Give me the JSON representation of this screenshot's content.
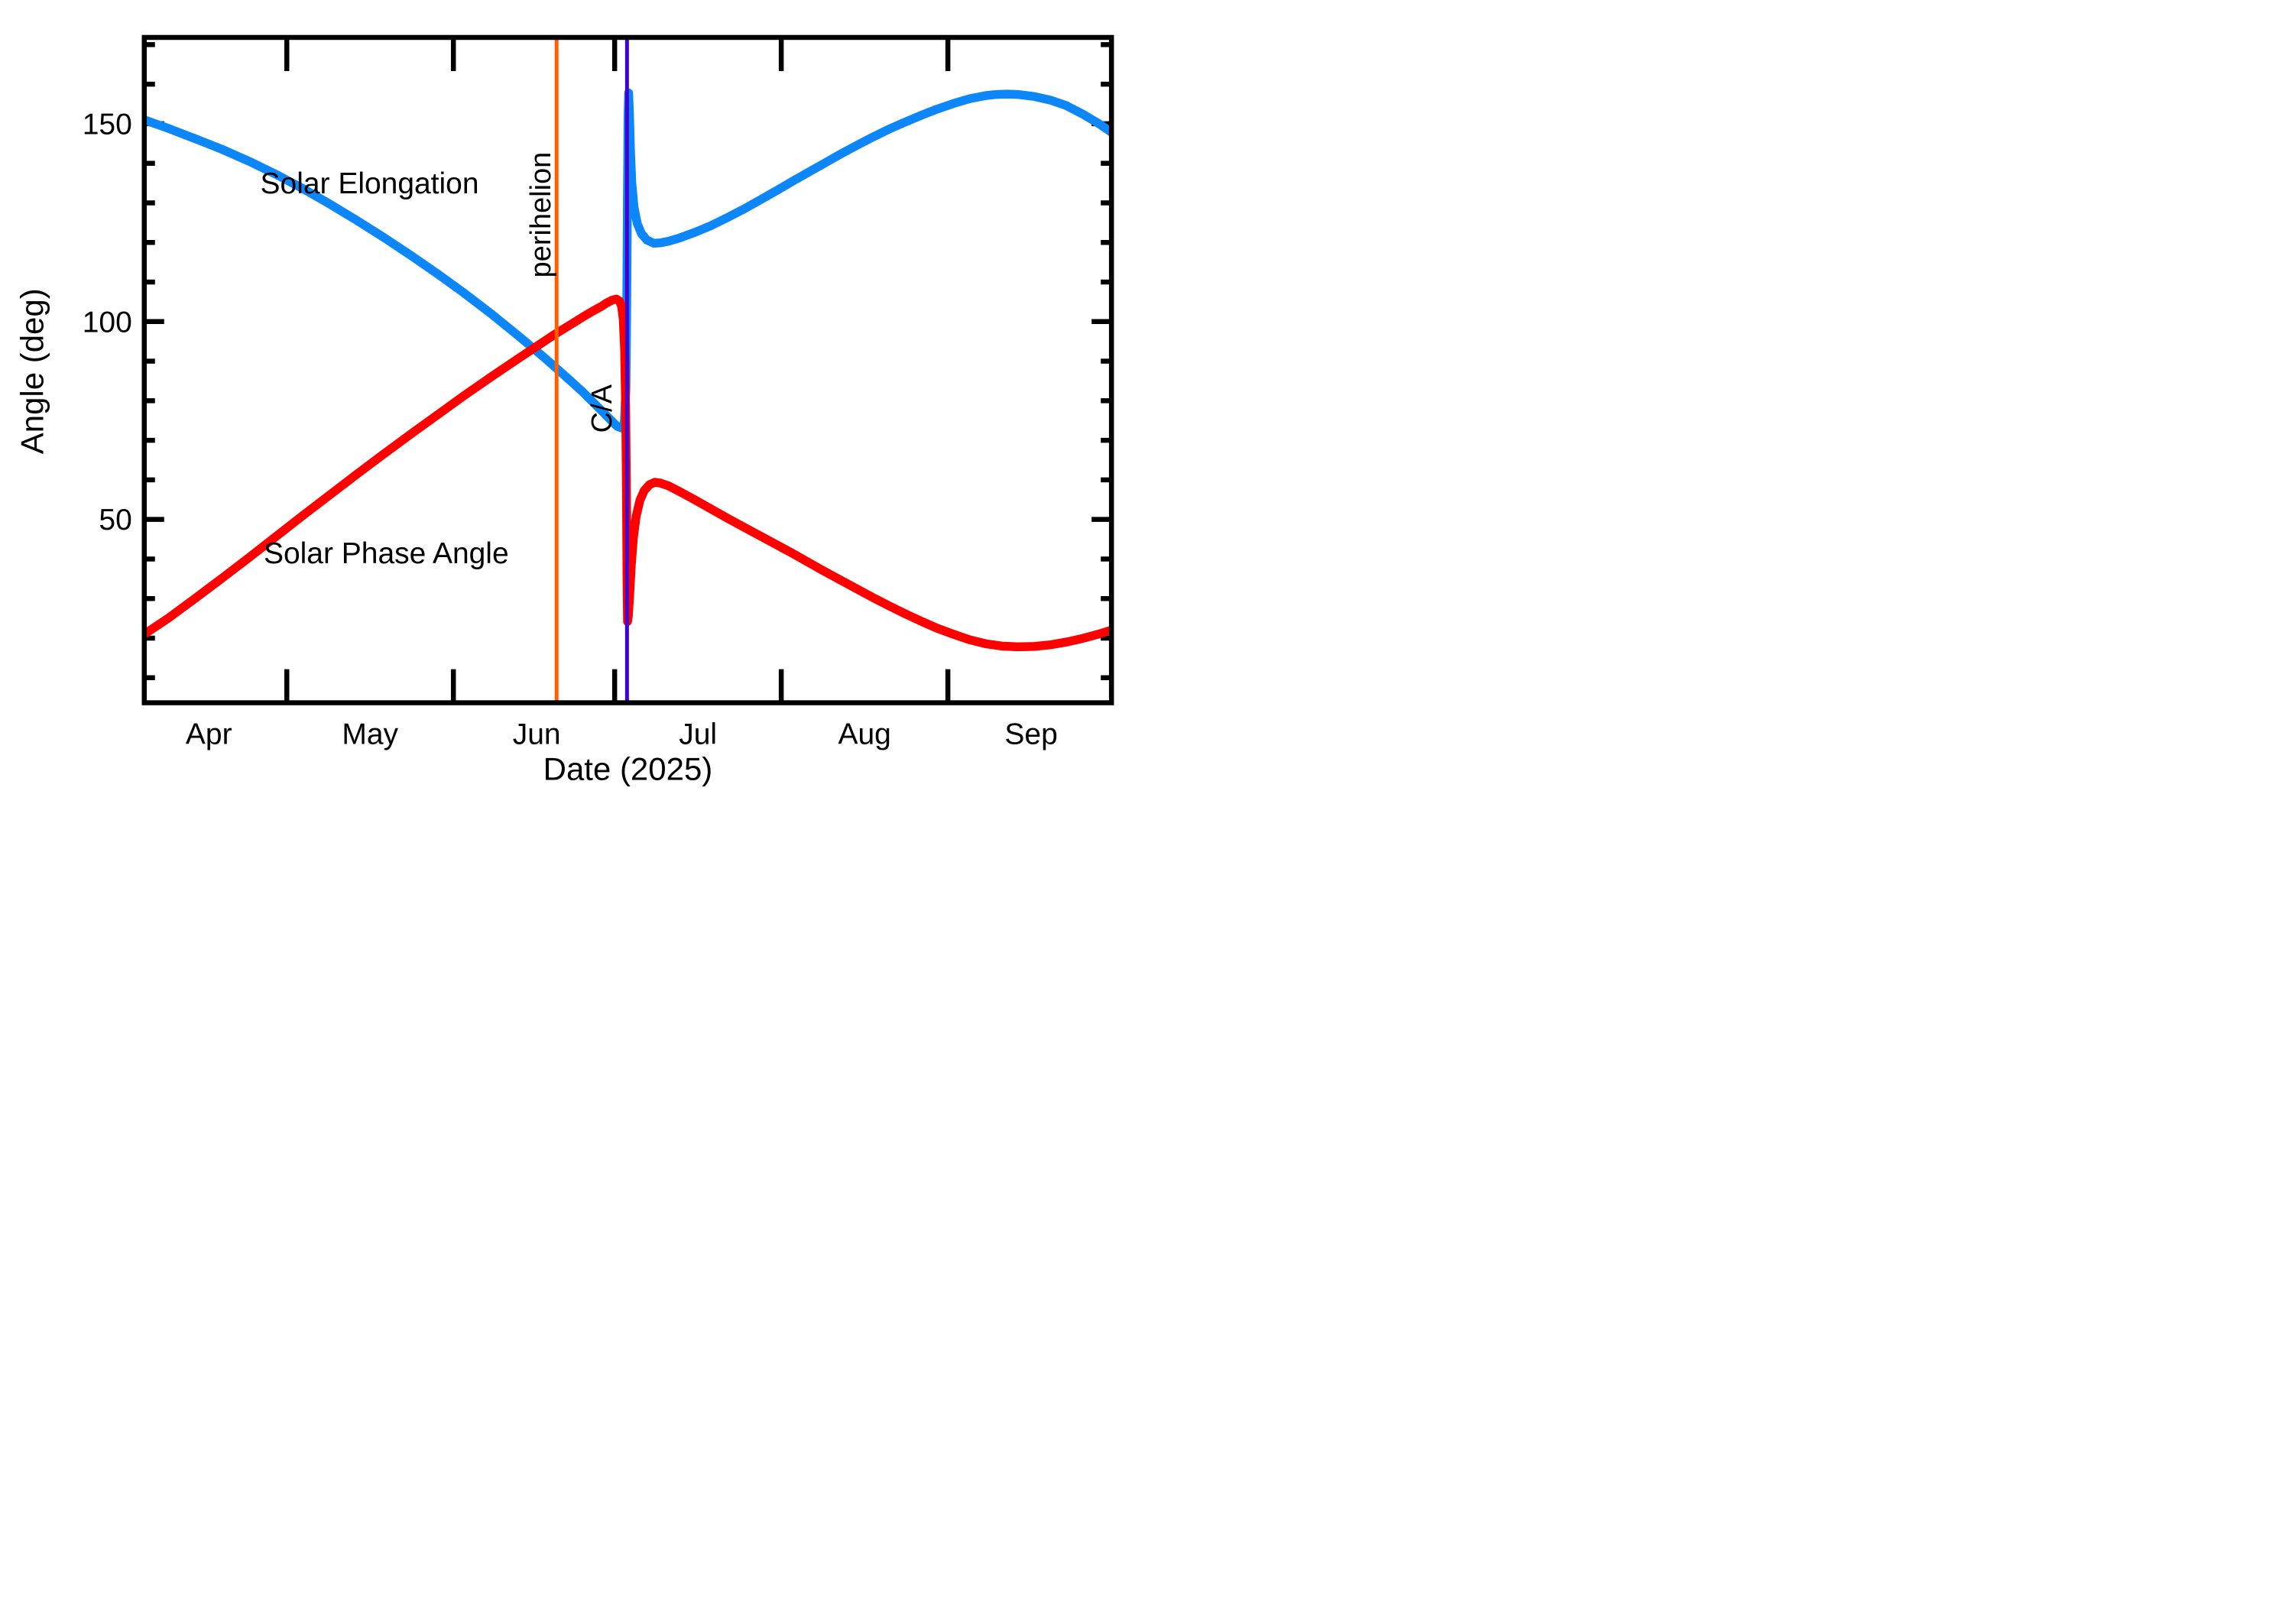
{
  "chart_data": {
    "type": "line",
    "title": "",
    "xlabel": "Date (2025)",
    "ylabel": "Angle (deg)",
    "background": "#ffffff",
    "axis_color": "#000000",
    "grid": false,
    "legend_position": "inline-labels",
    "x_axis": {
      "note": "day 0 = Apr 1, 2025; major ticks at month starts, labels centered mid-month",
      "domain_days": [
        3.5,
        183.4
      ],
      "months": [
        {
          "label": "Apr",
          "start_day": 0,
          "mid_day": 15.5
        },
        {
          "label": "May",
          "start_day": 30,
          "mid_day": 45.5
        },
        {
          "label": "Jun",
          "start_day": 61,
          "mid_day": 76.5
        },
        {
          "label": "Jul",
          "start_day": 91,
          "mid_day": 106.5
        },
        {
          "label": "Aug",
          "start_day": 122,
          "mid_day": 137.5
        },
        {
          "label": "Sep",
          "start_day": 153,
          "mid_day": 168.5
        }
      ]
    },
    "y_axis": {
      "domain": [
        3,
        172
      ],
      "major_ticks": [
        50,
        100,
        150
      ],
      "minor_tick_step": 10
    },
    "series": [
      {
        "name": "Solar Elongation",
        "color": "#0d87f8",
        "label_anchor": {
          "day": 45.4,
          "deg": 135
        },
        "points": [
          [
            3.5,
            151
          ],
          [
            8,
            148.8
          ],
          [
            13,
            146.2
          ],
          [
            18,
            143.5
          ],
          [
            23,
            140.5
          ],
          [
            28,
            137.2
          ],
          [
            33,
            133.6
          ],
          [
            38,
            129.7
          ],
          [
            43,
            125.6
          ],
          [
            48,
            121.3
          ],
          [
            53,
            116.8
          ],
          [
            58,
            112.1
          ],
          [
            63,
            107.2
          ],
          [
            68,
            102
          ],
          [
            73,
            96.5
          ],
          [
            78,
            90.8
          ],
          [
            82,
            86
          ],
          [
            85,
            82.3
          ],
          [
            87,
            79.6
          ],
          [
            89,
            76.9
          ],
          [
            90.5,
            74.8
          ],
          [
            91.5,
            73.5
          ],
          [
            92.3,
            73.1
          ],
          [
            92.8,
            74.5
          ],
          [
            93.1,
            83
          ],
          [
            93.25,
            103
          ],
          [
            93.38,
            132
          ],
          [
            93.5,
            152
          ],
          [
            93.6,
            157.8
          ],
          [
            93.75,
            153
          ],
          [
            93.95,
            143
          ],
          [
            94.2,
            135
          ],
          [
            94.6,
            129
          ],
          [
            95.2,
            124.8
          ],
          [
            96,
            122.2
          ],
          [
            97,
            120.6
          ],
          [
            98.3,
            119.8
          ],
          [
            99.5,
            119.9
          ],
          [
            101,
            120.3
          ],
          [
            103,
            121.1
          ],
          [
            106,
            122.6
          ],
          [
            109,
            124.3
          ],
          [
            112,
            126.3
          ],
          [
            115,
            128.4
          ],
          [
            118,
            130.7
          ],
          [
            121,
            133
          ],
          [
            124,
            135.4
          ],
          [
            127,
            137.7
          ],
          [
            130,
            140
          ],
          [
            133,
            142.3
          ],
          [
            136,
            144.5
          ],
          [
            139,
            146.6
          ],
          [
            142,
            148.6
          ],
          [
            145,
            150.4
          ],
          [
            148,
            152.1
          ],
          [
            151,
            153.7
          ],
          [
            154,
            155.1
          ],
          [
            157,
            156.3
          ],
          [
            160,
            157.1
          ],
          [
            162,
            157.4
          ],
          [
            164,
            157.5
          ],
          [
            166,
            157.4
          ],
          [
            169,
            156.9
          ],
          [
            172,
            156
          ],
          [
            175,
            154.6
          ],
          [
            178,
            152.5
          ],
          [
            181,
            150.1
          ],
          [
            183.4,
            147.9
          ]
        ]
      },
      {
        "name": "Solar Phase Angle",
        "color": "#ff0000",
        "label_anchor": {
          "day": 48.5,
          "deg": 41.5
        },
        "points": [
          [
            3.5,
            21
          ],
          [
            8,
            25.1
          ],
          [
            13,
            30.1
          ],
          [
            18,
            35.2
          ],
          [
            23,
            40.4
          ],
          [
            28,
            45.7
          ],
          [
            33,
            51
          ],
          [
            38,
            56.2
          ],
          [
            43,
            61.4
          ],
          [
            48,
            66.5
          ],
          [
            53,
            71.5
          ],
          [
            58,
            76.4
          ],
          [
            63,
            81.3
          ],
          [
            68,
            86
          ],
          [
            73,
            90.6
          ],
          [
            77,
            94.2
          ],
          [
            80,
            96.9
          ],
          [
            83,
            99.4
          ],
          [
            85,
            101.1
          ],
          [
            87,
            102.7
          ],
          [
            88.5,
            103.8
          ],
          [
            89.5,
            104.7
          ],
          [
            90.5,
            105.4
          ],
          [
            91.3,
            105.7
          ],
          [
            91.9,
            105.2
          ],
          [
            92.3,
            103.8
          ],
          [
            92.6,
            100.5
          ],
          [
            92.85,
            93
          ],
          [
            93.05,
            78
          ],
          [
            93.2,
            57
          ],
          [
            93.3,
            36
          ],
          [
            93.4,
            24.2
          ],
          [
            93.55,
            25.5
          ],
          [
            93.8,
            31
          ],
          [
            94.1,
            38.5
          ],
          [
            94.5,
            45.5
          ],
          [
            95,
            50.8
          ],
          [
            95.7,
            54.8
          ],
          [
            96.5,
            57.3
          ],
          [
            97.5,
            58.8
          ],
          [
            98.5,
            59.4
          ],
          [
            99.5,
            59.2
          ],
          [
            101,
            58.5
          ],
          [
            103,
            57.1
          ],
          [
            106,
            54.9
          ],
          [
            109,
            52.6
          ],
          [
            112,
            50.3
          ],
          [
            115,
            48.1
          ],
          [
            118,
            45.9
          ],
          [
            121,
            43.7
          ],
          [
            124,
            41.5
          ],
          [
            127,
            39.2
          ],
          [
            130,
            36.9
          ],
          [
            133,
            34.7
          ],
          [
            136,
            32.5
          ],
          [
            139,
            30.3
          ],
          [
            142,
            28.2
          ],
          [
            145,
            26.2
          ],
          [
            148,
            24.3
          ],
          [
            151,
            22.5
          ],
          [
            154,
            21
          ],
          [
            157,
            19.6
          ],
          [
            160,
            18.6
          ],
          [
            163,
            18
          ],
          [
            166,
            17.8
          ],
          [
            169,
            17.9
          ],
          [
            172,
            18.3
          ],
          [
            175,
            19
          ],
          [
            178,
            19.9
          ],
          [
            181,
            21
          ],
          [
            183.4,
            22
          ]
        ]
      }
    ],
    "annotations": [
      {
        "id": "perihelion",
        "text": "perihelion",
        "type": "vline",
        "day": 80.2,
        "date_approx": "2025-06-20",
        "color": "#ff5f00",
        "label_anchor": {
          "day": 77.1,
          "deg": 127
        },
        "label_rotation": -90
      },
      {
        "id": "close-approach",
        "text": "C/A",
        "type": "vline",
        "day": 93.3,
        "date_approx": "2025-07-03",
        "color": "#3f00d0",
        "label_anchor": {
          "day": 88.5,
          "deg": 78
        },
        "label_rotation": -90
      }
    ]
  }
}
